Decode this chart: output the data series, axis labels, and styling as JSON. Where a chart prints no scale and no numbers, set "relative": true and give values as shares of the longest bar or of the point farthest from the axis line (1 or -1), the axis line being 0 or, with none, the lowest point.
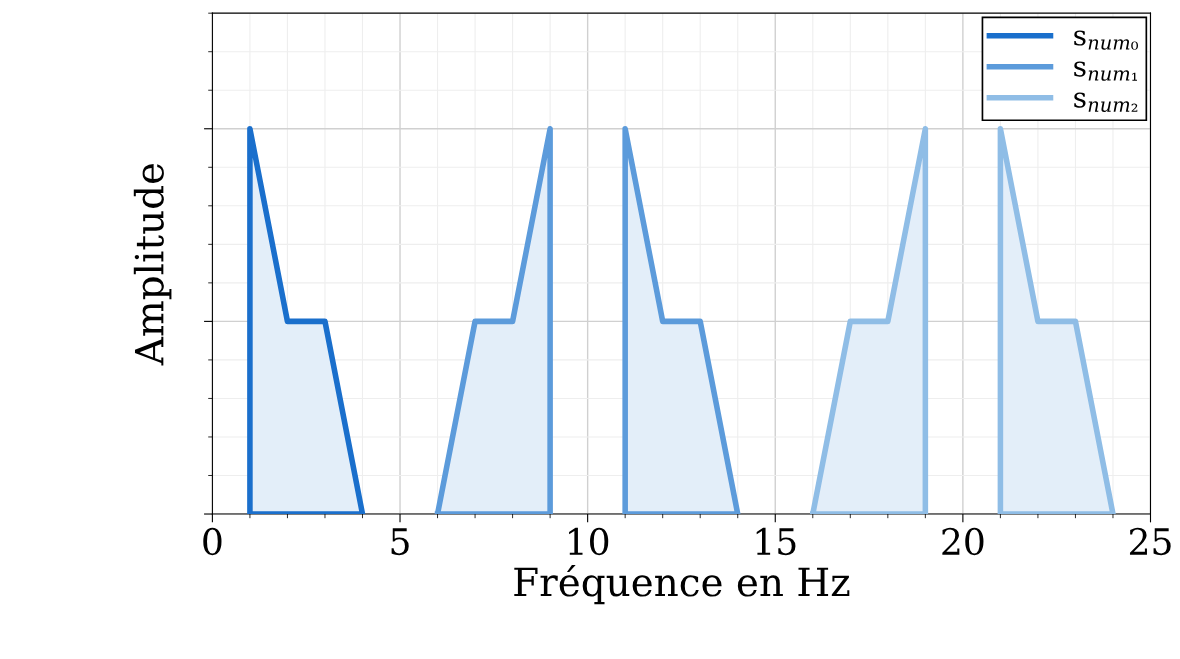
{
  "chart_data": {
    "type": "area",
    "relative": true,
    "xlabel": "Fréquence en Hz",
    "ylabel": "Amplitude",
    "xlim": [
      0,
      25
    ],
    "xticks": [
      0,
      5,
      10,
      15,
      20,
      25
    ],
    "tick_labels": "x",
    "grid": true,
    "legend": "top right",
    "line_style": "solid",
    "series": [
      {
        "name": "s$_{num₀}$",
        "color": "#1a6fcc",
        "x": [
          1,
          1,
          2,
          3,
          4,
          1
        ],
        "values": [
          0,
          1,
          0.5,
          0.5,
          0,
          0
        ]
      },
      {
        "name": "s$_{num₁}$",
        "color": "#5c9bdb",
        "x": [
          6,
          7,
          8,
          9,
          9,
          6,
          null,
          11,
          11,
          12,
          13,
          14,
          11
        ],
        "values": [
          0,
          0.5,
          0.5,
          1,
          0,
          0,
          null,
          0,
          1,
          0.5,
          0.5,
          0,
          0
        ]
      },
      {
        "name": "s$_{num₂}$",
        "color": "#8fbde6",
        "x": [
          16,
          17,
          18,
          19,
          19,
          16,
          null,
          21,
          21,
          22,
          23,
          24,
          21
        ],
        "values": [
          0,
          0.5,
          0.5,
          1,
          0,
          0,
          null,
          0,
          1,
          0.5,
          0.5,
          0,
          0
        ]
      }
    ]
  }
}
